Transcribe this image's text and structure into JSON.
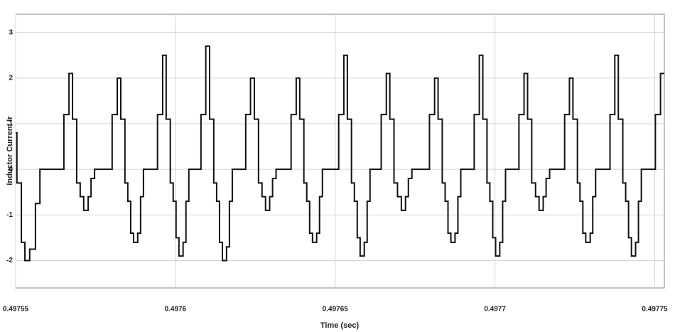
{
  "chart_data": {
    "type": "line",
    "step": "post",
    "y_label": "Inductor Current Ir",
    "x_label": "Time (sec)",
    "xlim": [
      0.49755,
      0.497753
    ],
    "xticks": [
      0.49755,
      0.4976,
      0.49765,
      0.4977,
      0.49775
    ],
    "ylim": [
      -2.6,
      3.4
    ],
    "yticks": [
      -2,
      -1,
      0,
      1,
      2,
      3
    ],
    "grid": true,
    "x": [
      0.49755,
      0.4975504,
      0.4975518,
      0.4975529,
      0.4975544,
      0.4975562,
      0.4975576,
      0.4975651,
      0.4975667,
      0.4975678,
      0.4975691,
      0.4975702,
      0.4975713,
      0.4975727,
      0.4975736,
      0.4975747,
      0.4975802,
      0.4975818,
      0.4975829,
      0.4975842,
      0.4975851,
      0.497586,
      0.4975869,
      0.4975882,
      0.4975891,
      0.49759,
      0.4975944,
      0.497596,
      0.4975971,
      0.4975984,
      0.4975993,
      0.4976002,
      0.4976011,
      0.4976024,
      0.4976033,
      0.4976042,
      0.497608,
      0.4976095,
      0.4976107,
      0.497612,
      0.4976129,
      0.4976138,
      0.4976147,
      0.497616,
      0.4976169,
      0.4976178,
      0.497622,
      0.4976235,
      0.4976247,
      0.497626,
      0.4976271,
      0.4976282,
      0.4976295,
      0.4976304,
      0.4976315,
      0.4976362,
      0.4976378,
      0.4976389,
      0.4976402,
      0.4976411,
      0.497642,
      0.4976429,
      0.4976442,
      0.4976451,
      0.497646,
      0.4976511,
      0.4976527,
      0.4976538,
      0.4976551,
      0.497656,
      0.4976569,
      0.4976578,
      0.4976591,
      0.49766,
      0.4976609,
      0.4976644,
      0.497666,
      0.4976671,
      0.4976684,
      0.4976695,
      0.4976707,
      0.497672,
      0.4976729,
      0.497674,
      0.4976795,
      0.4976811,
      0.4976822,
      0.4976835,
      0.4976844,
      0.4976853,
      0.4976862,
      0.4976875,
      0.4976884,
      0.4976893,
      0.4976935,
      0.4976951,
      0.4976962,
      0.4976975,
      0.4976984,
      0.4976993,
      0.4977002,
      0.4977015,
      0.4977024,
      0.4977033,
      0.4977075,
      0.4977091,
      0.4977102,
      0.4977115,
      0.4977127,
      0.4977138,
      0.4977151,
      0.497716,
      0.4977171,
      0.4977218,
      0.4977233,
      0.4977244,
      0.4977258,
      0.4977266,
      0.4977275,
      0.4977284,
      0.4977298,
      0.4977306,
      0.4977315,
      0.497736,
      0.4977375,
      0.4977386,
      0.49774,
      0.4977409,
      0.4977418,
      0.4977427,
      0.497744,
      0.4977449,
      0.4977458,
      0.4977502,
      0.4977518
    ],
    "series": [
      {
        "color": "#111111",
        "values": [
          0.8,
          -0.3,
          -1.6,
          -2.0,
          -1.75,
          -0.75,
          0,
          1.2,
          2.1,
          1.1,
          -0.3,
          -0.6,
          -0.9,
          -0.6,
          -0.2,
          0,
          1.2,
          2.0,
          1.1,
          -0.3,
          -0.7,
          -1.4,
          -1.6,
          -1.4,
          -0.6,
          0,
          1.2,
          2.5,
          1.1,
          -0.3,
          -0.7,
          -1.5,
          -1.9,
          -1.6,
          -0.7,
          0,
          1.2,
          2.7,
          1.1,
          -0.3,
          -0.7,
          -1.6,
          -2.0,
          -1.7,
          -0.7,
          0,
          1.2,
          2.0,
          1.1,
          -0.3,
          -0.6,
          -0.9,
          -0.6,
          -0.2,
          0,
          1.2,
          2.0,
          1.1,
          -0.3,
          -0.7,
          -1.4,
          -1.6,
          -1.4,
          -0.6,
          0,
          1.2,
          2.5,
          1.1,
          -0.3,
          -0.7,
          -1.5,
          -1.9,
          -1.6,
          -0.7,
          0,
          1.2,
          2.1,
          1.1,
          -0.3,
          -0.6,
          -0.9,
          -0.6,
          -0.2,
          0,
          1.2,
          2.0,
          1.1,
          -0.3,
          -0.7,
          -1.4,
          -1.6,
          -1.4,
          -0.6,
          0,
          1.2,
          2.5,
          1.1,
          -0.3,
          -0.7,
          -1.5,
          -1.9,
          -1.6,
          -0.7,
          0,
          1.2,
          2.1,
          1.1,
          -0.3,
          -0.6,
          -0.9,
          -0.6,
          -0.2,
          0,
          1.2,
          2.0,
          1.1,
          -0.3,
          -0.7,
          -1.4,
          -1.6,
          -1.4,
          -0.6,
          0,
          1.2,
          2.5,
          1.1,
          -0.3,
          -0.7,
          -1.5,
          -1.9,
          -1.6,
          -0.7,
          0,
          1.2,
          2.1
        ]
      }
    ]
  }
}
